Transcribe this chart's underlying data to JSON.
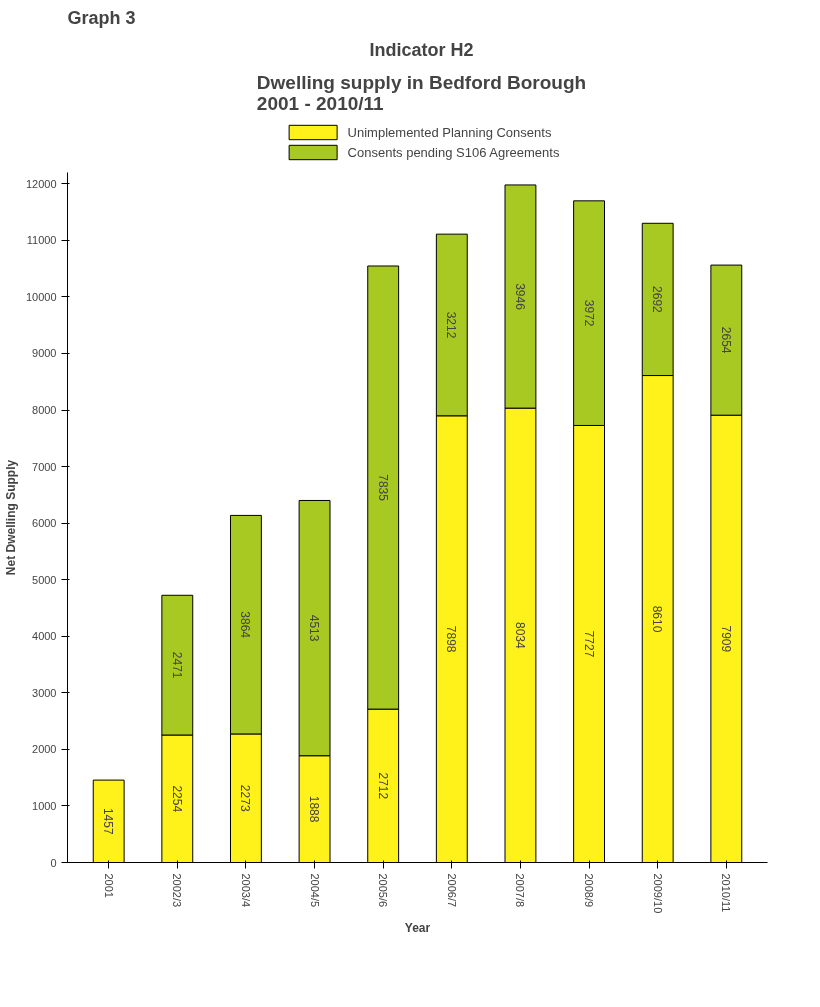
{
  "chart_data": {
    "type": "bar",
    "title": "Indicator H2",
    "subtitle": "Dwelling supply in Bedford Borough\n2001 - 2010/11",
    "xlabel": "Year",
    "ylabel": "Net Dwelling Supply",
    "annotations": [
      "Graph 3"
    ],
    "categories": [
      "2001",
      "2002/3",
      "2003/4",
      "2004/5",
      "2005/6",
      "2006/7",
      "2007/8",
      "2008/9",
      "2009/10",
      "2010/11"
    ],
    "stacked": true,
    "series": [
      {
        "name": "Unimplemented Planning Consents",
        "color": "#fff21a",
        "values": [
          1457,
          2254,
          2273,
          1888,
          2712,
          7898,
          8034,
          7727,
          8610,
          7909
        ]
      },
      {
        "name": "Consents pending S106 Agreements",
        "color": "#a8c822",
        "values": [
          null,
          2471,
          3864,
          4513,
          7835,
          3212,
          3946,
          3972,
          2692,
          2654
        ]
      }
    ],
    "ylim": [
      0,
      12200
    ],
    "yticks": [
      0,
      1000,
      2000,
      3000,
      4000,
      5000,
      6000,
      7000,
      8000,
      9000,
      10000,
      11000,
      12000
    ],
    "data_labels": true,
    "grid": false,
    "legend": "top"
  }
}
